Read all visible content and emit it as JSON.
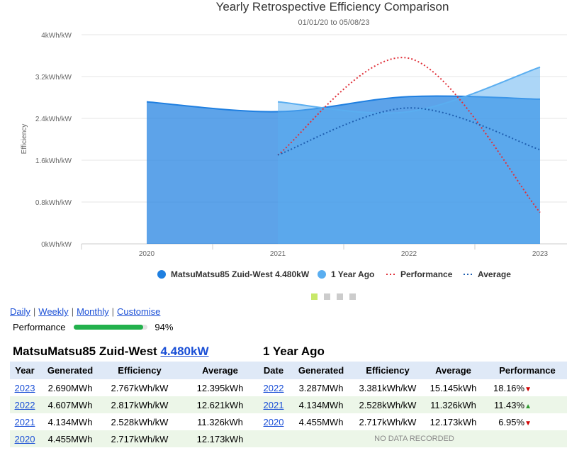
{
  "chart_data": {
    "type": "area",
    "title": "Yearly Retrospective Efficiency Comparison",
    "subtitle": "01/01/20 to 05/08/23",
    "ylabel": "Efficiency",
    "ylim": [
      0,
      4
    ],
    "y_ticks": [
      "0kWh/kW",
      "0.8kWh/kW",
      "1.6kWh/kW",
      "2.4kWh/kW",
      "3.2kWh/kW",
      "4kWh/kW"
    ],
    "y_tick_values": [
      0,
      0.8,
      1.6,
      2.4,
      3.2,
      4
    ],
    "categories": [
      "2020",
      "2021",
      "2022",
      "2023"
    ],
    "series": [
      {
        "name": "MatsuMatsu85 Zuid-West 4.480kW",
        "kind": "area",
        "color": "#1f7fe0",
        "values": [
          2.717,
          2.528,
          2.817,
          2.767
        ]
      },
      {
        "name": "1 Year Ago",
        "kind": "area",
        "color": "#5aaef0",
        "values": [
          null,
          2.717,
          2.528,
          3.381
        ]
      },
      {
        "name": "Performance",
        "kind": "dotted-line",
        "color": "#e0313a",
        "values": [
          null,
          1.7,
          3.55,
          0.6
        ]
      },
      {
        "name": "Average",
        "kind": "dotted-line",
        "color": "#1f5fb0",
        "values": [
          null,
          1.7,
          2.6,
          1.8
        ]
      }
    ]
  },
  "pager_dots": [
    "active",
    "inactive",
    "inactive",
    "inactive"
  ],
  "pager_colors": {
    "active": "#c8e86a",
    "inactive": "#cccccc"
  },
  "period_links": [
    {
      "label": "Daily"
    },
    {
      "label": "Weekly"
    },
    {
      "label": "Monthly"
    },
    {
      "label": "Customise"
    }
  ],
  "performance": {
    "label": "Performance",
    "percent": 94,
    "percent_text": "94%",
    "bar_color": "#22b14c"
  },
  "current_system": {
    "name": "MatsuMatsu85 Zuid-West",
    "size_link": "4.480kW"
  },
  "previous": {
    "title": "1 Year Ago"
  },
  "left_table": {
    "headers": [
      "Year",
      "Generated",
      "Efficiency",
      "Average"
    ],
    "rows": [
      {
        "year": "2023",
        "generated": "2.690MWh",
        "efficiency": "2.767kWh/kW",
        "average": "12.395kWh"
      },
      {
        "year": "2022",
        "generated": "4.607MWh",
        "efficiency": "2.817kWh/kW",
        "average": "12.621kWh"
      },
      {
        "year": "2021",
        "generated": "4.134MWh",
        "efficiency": "2.528kWh/kW",
        "average": "11.326kWh"
      },
      {
        "year": "2020",
        "generated": "4.455MWh",
        "efficiency": "2.717kWh/kW",
        "average": "12.173kWh"
      }
    ]
  },
  "right_table": {
    "headers": [
      "Date",
      "Generated",
      "Efficiency",
      "Average",
      "Performance"
    ],
    "rows": [
      {
        "date": "2022",
        "generated": "3.287MWh",
        "efficiency": "3.381kWh/kW",
        "average": "15.145kWh",
        "performance": "18.16%",
        "trend": "▼"
      },
      {
        "date": "2021",
        "generated": "4.134MWh",
        "efficiency": "2.528kWh/kW",
        "average": "11.326kWh",
        "performance": "11.43%",
        "trend": "▲"
      },
      {
        "date": "2020",
        "generated": "4.455MWh",
        "efficiency": "2.717kWh/kW",
        "average": "12.173kWh",
        "performance": "6.95%",
        "trend": "▼"
      }
    ],
    "no_data_text": "NO DATA RECORDED"
  }
}
